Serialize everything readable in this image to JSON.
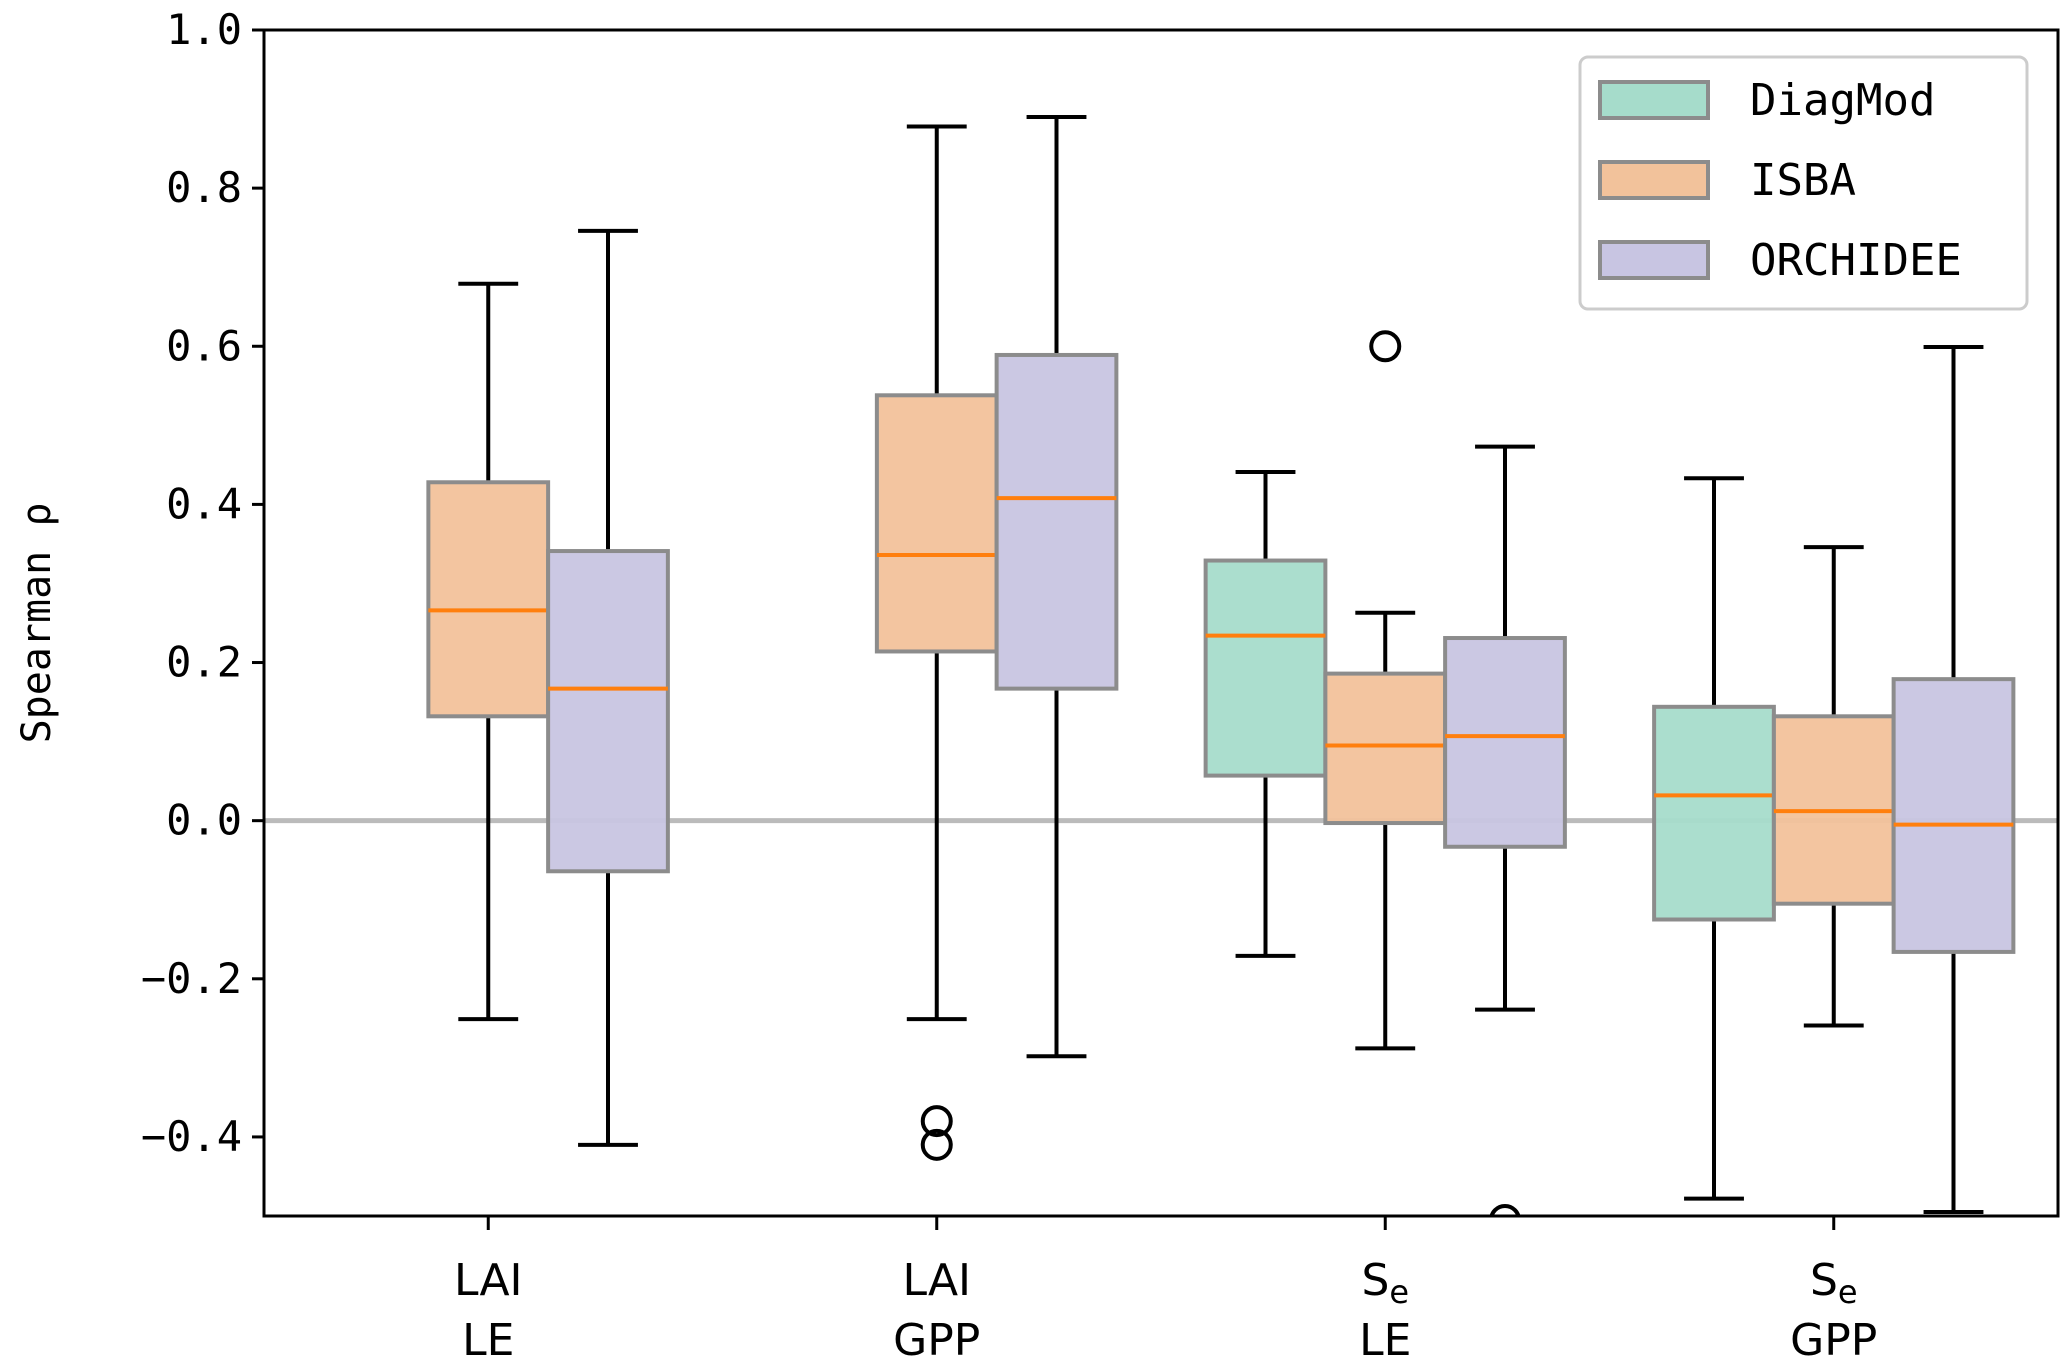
{
  "chart_data": {
    "type": "box",
    "title": "",
    "xlabel": "",
    "ylabel": "Spearman ρ",
    "ylim": [
      -0.5,
      1.0
    ],
    "yticks": [
      "−0.4",
      "−0.2",
      "0.0",
      "0.2",
      "0.4",
      "0.6",
      "0.8",
      "1.0"
    ],
    "ytick_values": [
      -0.4,
      -0.2,
      0.0,
      0.2,
      0.4,
      0.6,
      0.8,
      1.0
    ],
    "reference_line": 0.0,
    "grid": false,
    "legend_position": "top-right",
    "categories": [
      {
        "line1": "LAI",
        "line2": "LE"
      },
      {
        "line1": "LAI",
        "line2": "GPP"
      },
      {
        "line1": "S",
        "sub": "e",
        "line2": "LE"
      },
      {
        "line1": "S",
        "sub": "e",
        "line2": "GPP"
      }
    ],
    "series": [
      {
        "name": "DiagMod",
        "color": "#a6dccb",
        "boxes": [
          null,
          null,
          {
            "whislo": -0.171,
            "q1": 0.057,
            "med": 0.234,
            "q3": 0.329,
            "whishi": 0.441,
            "fliers": []
          },
          {
            "whislo": -0.478,
            "q1": -0.125,
            "med": 0.032,
            "q3": 0.144,
            "whishi": 0.433,
            "fliers": []
          }
        ]
      },
      {
        "name": "ISBA",
        "color": "#f2c29b",
        "boxes": [
          {
            "whislo": -0.251,
            "q1": 0.132,
            "med": 0.266,
            "q3": 0.428,
            "whishi": 0.679,
            "fliers": []
          },
          {
            "whislo": -0.251,
            "q1": 0.214,
            "med": 0.336,
            "q3": 0.538,
            "whishi": 0.878,
            "fliers": [
              -0.38,
              -0.41
            ]
          },
          {
            "whislo": -0.288,
            "q1": -0.003,
            "med": 0.095,
            "q3": 0.186,
            "whishi": 0.263,
            "fliers": [
              0.6
            ]
          },
          {
            "whislo": -0.259,
            "q1": -0.105,
            "med": 0.012,
            "q3": 0.132,
            "whishi": 0.346,
            "fliers": []
          }
        ]
      },
      {
        "name": "ORCHIDEE",
        "color": "#c8c5e2",
        "boxes": [
          {
            "whislo": -0.41,
            "q1": -0.064,
            "med": 0.167,
            "q3": 0.341,
            "whishi": 0.746,
            "fliers": []
          },
          {
            "whislo": -0.298,
            "q1": 0.167,
            "med": 0.408,
            "q3": 0.589,
            "whishi": 0.89,
            "fliers": []
          },
          {
            "whislo": -0.239,
            "q1": -0.033,
            "med": 0.107,
            "q3": 0.231,
            "whishi": 0.473,
            "fliers": [
              -0.505
            ]
          },
          {
            "whislo": -0.495,
            "q1": -0.166,
            "med": -0.005,
            "q3": 0.179,
            "whishi": 0.599,
            "fliers": []
          }
        ]
      }
    ],
    "median_color": "#ff7f0e",
    "box_edge_color": "#8c8c8c"
  }
}
